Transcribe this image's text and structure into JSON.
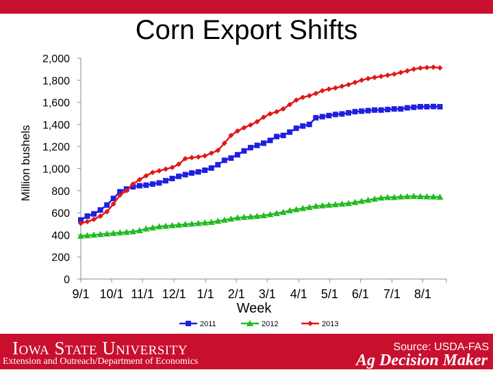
{
  "chart_data": {
    "type": "line",
    "title": "Corn Export Shifts",
    "xlabel": "Week",
    "ylabel": "Million bushels",
    "ylim": [
      0,
      2000
    ],
    "yticks": [
      "0",
      "200",
      "400",
      "600",
      "800",
      "1,000",
      "1,200",
      "1,400",
      "1,600",
      "1,800",
      "2,000"
    ],
    "ytick_values": [
      0,
      200,
      400,
      600,
      800,
      1000,
      1200,
      1400,
      1600,
      1800,
      2000
    ],
    "xticks": [
      "9/1",
      "10/1",
      "11/1",
      "12/1",
      "1/1",
      "2/1",
      "3/1",
      "4/1",
      "5/1",
      "6/1",
      "7/1",
      "8/1"
    ],
    "xtick_weeks": [
      0,
      4.3,
      8.6,
      13,
      17.4,
      21.7,
      26,
      30.4,
      34.7,
      39,
      43.4,
      47.7
    ],
    "x_max_weeks": 51,
    "legend_position": "bottom",
    "series": [
      {
        "name": "2011",
        "color": "#1f1fe0",
        "marker": "square",
        "values": [
          535,
          570,
          590,
          625,
          670,
          730,
          790,
          815,
          835,
          845,
          850,
          860,
          870,
          890,
          910,
          930,
          945,
          960,
          970,
          985,
          1005,
          1035,
          1075,
          1095,
          1125,
          1160,
          1190,
          1210,
          1230,
          1255,
          1290,
          1300,
          1330,
          1365,
          1385,
          1400,
          1460,
          1470,
          1480,
          1490,
          1495,
          1505,
          1515,
          1520,
          1525,
          1530,
          1530,
          1535,
          1540,
          1540,
          1550,
          1555,
          1560,
          1560,
          1562,
          1560
        ]
      },
      {
        "name": "2012",
        "color": "#22bb22",
        "marker": "triangle",
        "values": [
          390,
          395,
          400,
          405,
          410,
          415,
          420,
          425,
          430,
          440,
          455,
          465,
          475,
          480,
          485,
          490,
          495,
          500,
          505,
          510,
          515,
          525,
          535,
          545,
          555,
          560,
          565,
          570,
          575,
          585,
          595,
          605,
          620,
          630,
          640,
          650,
          660,
          665,
          670,
          675,
          680,
          685,
          695,
          705,
          715,
          725,
          735,
          740,
          740,
          745,
          748,
          750,
          748,
          746,
          745,
          743
        ]
      },
      {
        "name": "2013",
        "color": "#e01818",
        "marker": "diamond",
        "values": [
          505,
          520,
          540,
          570,
          610,
          680,
          760,
          800,
          860,
          900,
          935,
          965,
          980,
          995,
          1010,
          1040,
          1090,
          1100,
          1105,
          1115,
          1140,
          1165,
          1230,
          1300,
          1340,
          1370,
          1395,
          1425,
          1465,
          1495,
          1515,
          1540,
          1580,
          1620,
          1645,
          1660,
          1680,
          1705,
          1720,
          1730,
          1745,
          1760,
          1780,
          1800,
          1815,
          1825,
          1835,
          1845,
          1855,
          1870,
          1885,
          1900,
          1910,
          1915,
          1918,
          1912
        ]
      }
    ]
  },
  "footer": {
    "university": "Iowa State University",
    "department": "Extension and Outreach/Department of Economics",
    "source": "Source: USDA-FAS",
    "brand": "Ag Decision Maker"
  },
  "colors": {
    "footer_bg": "#c8102e",
    "top_bar": "#c8102e"
  }
}
